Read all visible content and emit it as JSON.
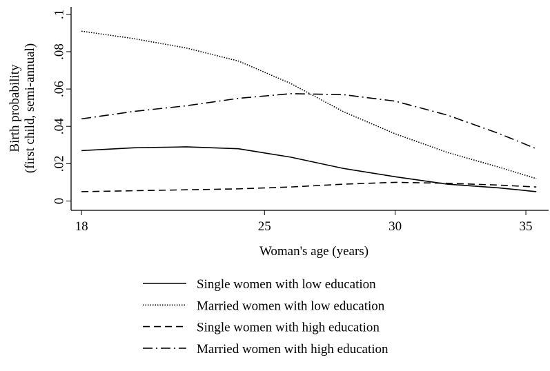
{
  "chart_data": {
    "type": "line",
    "xlabel": "Woman's age (years)",
    "ylabel": [
      "Birth probability",
      "(first child, semi-annual)"
    ],
    "x": [
      18,
      20,
      22,
      24,
      26,
      28,
      30,
      32,
      34,
      35.4
    ],
    "series": [
      {
        "name": "Single women with low education",
        "color": "#000000",
        "style": "solid",
        "values": [
          0.027,
          0.0285,
          0.029,
          0.028,
          0.0235,
          0.0175,
          0.013,
          0.009,
          0.007,
          0.005
        ]
      },
      {
        "name": "Married women with low education",
        "color": "#000000",
        "style": "dotted",
        "values": [
          0.091,
          0.087,
          0.082,
          0.075,
          0.063,
          0.048,
          0.036,
          0.026,
          0.018,
          0.012
        ]
      },
      {
        "name": "Single women with high education",
        "color": "#000000",
        "style": "dashed",
        "values": [
          0.005,
          0.0055,
          0.006,
          0.0065,
          0.0075,
          0.009,
          0.01,
          0.0095,
          0.0085,
          0.0075
        ]
      },
      {
        "name": "Married women with high education",
        "color": "#000000",
        "style": "dashdot",
        "values": [
          0.044,
          0.048,
          0.051,
          0.055,
          0.0575,
          0.057,
          0.0535,
          0.046,
          0.036,
          0.028
        ]
      }
    ],
    "xlim": [
      17.6,
      35.87
    ],
    "xticks": [
      18,
      25,
      30,
      35
    ],
    "ylim": [
      -0.005,
      0.104
    ],
    "yticks": [
      0,
      {
        "value": 0.02,
        "label": ".02"
      },
      {
        "value": 0.04,
        "label": ".04"
      },
      {
        "value": 0.06,
        "label": ".06"
      },
      {
        "value": 0.08,
        "label": ".08"
      },
      {
        "value": 0.1,
        "label": ".1"
      }
    ]
  }
}
